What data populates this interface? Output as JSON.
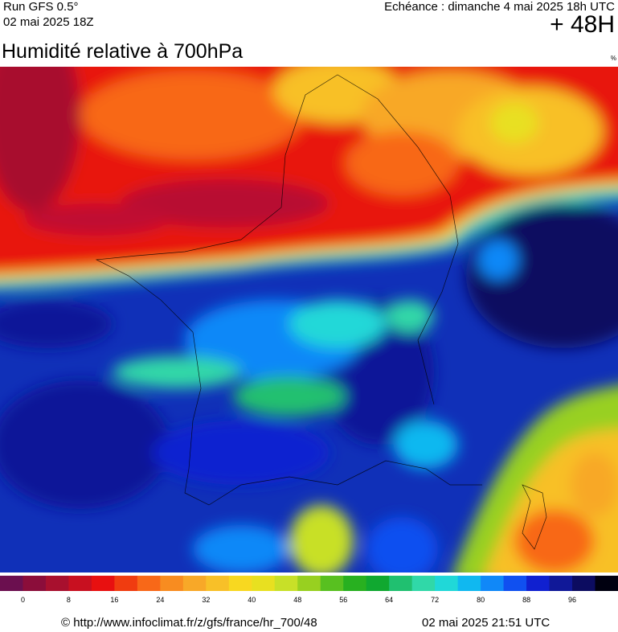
{
  "header": {
    "run": "Run GFS 0.5°",
    "run_date": "02 mai 2025 18Z",
    "valid": "Echéance : dimanche 4 mai 2025 18h UTC",
    "lead": "+ 48H",
    "title": "Humidité relative à 700hPa",
    "unit": "%"
  },
  "legend": {
    "colors": [
      "#6b0f4f",
      "#8b0d3a",
      "#a8102e",
      "#c81020",
      "#e81010",
      "#f03c10",
      "#f86818",
      "#f88c20",
      "#f8a828",
      "#f8c028",
      "#f8d820",
      "#e8e020",
      "#c8e028",
      "#98d020",
      "#58c020",
      "#28b020",
      "#10a830",
      "#20c070",
      "#30d8a8",
      "#20d8d8",
      "#10b8f0",
      "#1088f8",
      "#1050f0",
      "#1020d0",
      "#101898",
      "#0c0c60",
      "#000010"
    ],
    "ticks": [
      0,
      8,
      16,
      24,
      32,
      40,
      48,
      56,
      64,
      72,
      80,
      88,
      96
    ]
  },
  "footer": {
    "source": "© http://www.infoclimat.fr/z/gfs/france/hr_700/48",
    "generated": "02 mai 2025 21:51 UTC"
  }
}
